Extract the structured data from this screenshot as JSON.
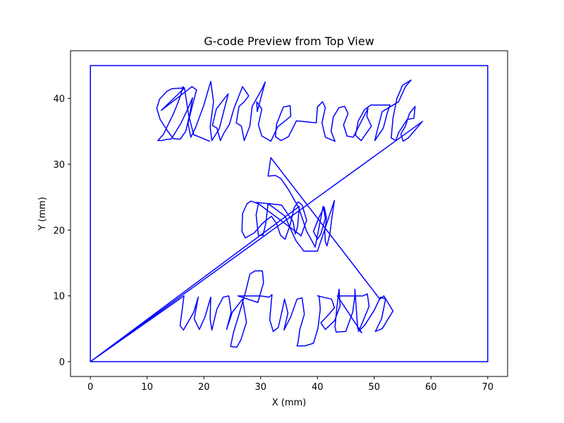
{
  "chart_data": {
    "type": "line",
    "title": "G-code Preview from Top View",
    "xlabel": "X (mm)",
    "ylabel": "Y (mm)",
    "xlim": [
      -3.5,
      73.5
    ],
    "ylim": [
      -2.25,
      47.25
    ],
    "xticks": [
      0,
      10,
      20,
      30,
      40,
      50,
      60,
      70
    ],
    "yticks": [
      0,
      10,
      20,
      30,
      40
    ],
    "grid": false,
    "legend": "none",
    "line_color": "#0000ff",
    "series": [
      {
        "values": [
          [
            0,
            0
          ],
          [
            0,
            45
          ],
          [
            70,
            45
          ],
          [
            70,
            0
          ],
          [
            0,
            0
          ],
          [
            16.5,
            10
          ],
          [
            15.8,
            5.5
          ],
          [
            16.4,
            4.8
          ],
          [
            18.2,
            7.5
          ],
          [
            19,
            9.8
          ],
          [
            18.3,
            6.5
          ],
          [
            19.2,
            4.9
          ],
          [
            20.2,
            6.8
          ],
          [
            21.2,
            9.8
          ],
          [
            21.1,
            6.5
          ],
          [
            21.4,
            4.8
          ],
          [
            22.3,
            8
          ],
          [
            23.4,
            9.8
          ],
          [
            24.4,
            10
          ],
          [
            24.8,
            7.5
          ],
          [
            24,
            4.9
          ],
          [
            25,
            7.5
          ],
          [
            26.8,
            9.5
          ],
          [
            27.5,
            6
          ],
          [
            26.5,
            3.3
          ],
          [
            25.8,
            2.2
          ],
          [
            24.7,
            2.3
          ],
          [
            25.2,
            4.4
          ],
          [
            26.3,
            7.5
          ],
          [
            27.4,
            10.8
          ],
          [
            28.1,
            13.3
          ],
          [
            29,
            13.8
          ],
          [
            30.3,
            13.8
          ],
          [
            30.5,
            12
          ],
          [
            29.5,
            9
          ],
          [
            26,
            10
          ],
          [
            30,
            10
          ],
          [
            31.5,
            9.8
          ],
          [
            32,
            10.2
          ],
          [
            31.6,
            6.4
          ],
          [
            32.2,
            4.6
          ],
          [
            33.1,
            5.2
          ],
          [
            33.8,
            7.8
          ],
          [
            34.2,
            9.5
          ],
          [
            34.8,
            7.4
          ],
          [
            34.1,
            4.8
          ],
          [
            35.3,
            6.8
          ],
          [
            36.4,
            9.5
          ],
          [
            37.3,
            9.7
          ],
          [
            37.7,
            7.2
          ],
          [
            36.9,
            4.9
          ],
          [
            36.6,
            3
          ],
          [
            36.4,
            2.4
          ],
          [
            37.8,
            2.4
          ],
          [
            39.3,
            2.8
          ],
          [
            40.1,
            5.1
          ],
          [
            40.5,
            8
          ],
          [
            40.3,
            10
          ],
          [
            40,
            10
          ],
          [
            42.5,
            9.5
          ],
          [
            43,
            8.2
          ],
          [
            41.8,
            7
          ],
          [
            40.6,
            5.9
          ],
          [
            41.4,
            4.9
          ],
          [
            43,
            6.2
          ],
          [
            44,
            8.5
          ],
          [
            43.8,
            11
          ],
          [
            43.4,
            8
          ],
          [
            43.1,
            5.3
          ],
          [
            43.3,
            4.5
          ],
          [
            45,
            4.6
          ],
          [
            46.2,
            7.5
          ],
          [
            46.6,
            10
          ],
          [
            46.6,
            11
          ],
          [
            47.1,
            5
          ],
          [
            47.8,
            4.4
          ],
          [
            43.5,
            10
          ],
          [
            48,
            10
          ],
          [
            48.8,
            10.3
          ],
          [
            49.1,
            8.4
          ],
          [
            47.7,
            5.5
          ],
          [
            47.2,
            4.6
          ],
          [
            48.3,
            5.5
          ],
          [
            50,
            7.8
          ],
          [
            51.1,
            9.8
          ],
          [
            52,
            9.5
          ],
          [
            51.3,
            6.5
          ],
          [
            50.2,
            4.6
          ],
          [
            51.4,
            5
          ],
          [
            53.3,
            7.7
          ],
          [
            51.7,
            10
          ],
          [
            51,
            9.5
          ],
          [
            31.8,
            31
          ],
          [
            31.3,
            28.2
          ],
          [
            32.6,
            28.3
          ],
          [
            33.6,
            27.8
          ],
          [
            35,
            26
          ],
          [
            36.7,
            23.4
          ],
          [
            38.1,
            19.8
          ],
          [
            39.2,
            18.1
          ],
          [
            39.6,
            17.4
          ],
          [
            41,
            23.6
          ],
          [
            41.4,
            21.8
          ],
          [
            40.6,
            19.4
          ],
          [
            40,
            18.6
          ],
          [
            39.3,
            19.8
          ],
          [
            40.3,
            22
          ],
          [
            41.2,
            23.5
          ],
          [
            41.6,
            21.8
          ],
          [
            41.3,
            19.8
          ],
          [
            41.4,
            18.2
          ],
          [
            41.7,
            17.6
          ],
          [
            42.2,
            19.5
          ],
          [
            42.5,
            21.6
          ],
          [
            43,
            24.5
          ],
          [
            40,
            16.8
          ],
          [
            37.6,
            16.8
          ],
          [
            36.2,
            18.4
          ],
          [
            35.1,
            20.5
          ],
          [
            34.3,
            22.1
          ],
          [
            32.3,
            23.4
          ],
          [
            31.3,
            24
          ],
          [
            30.9,
            21
          ],
          [
            30.4,
            19.2
          ],
          [
            29.6,
            19.2
          ],
          [
            29.2,
            22.3
          ],
          [
            29.6,
            24
          ],
          [
            28.3,
            24.4
          ],
          [
            27.6,
            24
          ],
          [
            26.8,
            22.5
          ],
          [
            26.7,
            19.8
          ],
          [
            27.3,
            18.8
          ],
          [
            28.9,
            19.6
          ],
          [
            30.3,
            21
          ],
          [
            31.9,
            22.1
          ],
          [
            32.8,
            21
          ],
          [
            33.5,
            19.2
          ],
          [
            34.3,
            18.6
          ],
          [
            35.2,
            20.8
          ],
          [
            35.9,
            23.4
          ],
          [
            36.6,
            24.3
          ],
          [
            37.3,
            23.8
          ],
          [
            38.1,
            21.5
          ],
          [
            37.1,
            19.1
          ],
          [
            36.9,
            19.3
          ],
          [
            29.3,
            24.2
          ],
          [
            33.7,
            23.8
          ],
          [
            35.7,
            21.3
          ],
          [
            36.1,
            19.4
          ],
          [
            36.5,
            20.5
          ],
          [
            36.8,
            23.6
          ],
          [
            0,
            0
          ],
          [
            58.5,
            36.5
          ],
          [
            56,
            34
          ],
          [
            55.1,
            33.5
          ],
          [
            54.7,
            34.6
          ],
          [
            55.5,
            35.8
          ],
          [
            56.2,
            37.7
          ],
          [
            57.2,
            38.8
          ],
          [
            57,
            37
          ],
          [
            55.8,
            36.8
          ],
          [
            54.3,
            34.8
          ],
          [
            53.8,
            33.6
          ],
          [
            53,
            34
          ],
          [
            53.3,
            37
          ],
          [
            54,
            40
          ],
          [
            55,
            42
          ],
          [
            56.5,
            42.8
          ],
          [
            55.5,
            41.8
          ],
          [
            54.3,
            39.5
          ],
          [
            51.4,
            38
          ],
          [
            50.5,
            35
          ],
          [
            50.1,
            33.6
          ],
          [
            51.6,
            35.5
          ],
          [
            52.3,
            37.8
          ],
          [
            52.8,
            39
          ],
          [
            49.4,
            39
          ],
          [
            48.3,
            38.3
          ],
          [
            47.2,
            36.6
          ],
          [
            46.7,
            34.4
          ],
          [
            47.7,
            33.6
          ],
          [
            49.5,
            35.8
          ],
          [
            48.7,
            37.3
          ],
          [
            48.9,
            38.5
          ],
          [
            47.2,
            35.6
          ],
          [
            46.3,
            34.1
          ],
          [
            45.2,
            34.3
          ],
          [
            44.6,
            36
          ],
          [
            45.4,
            37.7
          ],
          [
            44.8,
            38.8
          ],
          [
            43.8,
            38.6
          ],
          [
            42.8,
            37.2
          ],
          [
            42.4,
            35
          ],
          [
            43.1,
            33.5
          ],
          [
            41.4,
            34.1
          ],
          [
            40.8,
            36.3
          ],
          [
            41.4,
            38.6
          ],
          [
            40.9,
            39.5
          ],
          [
            40,
            38.7
          ],
          [
            39.8,
            36.3
          ],
          [
            36.3,
            36.6
          ],
          [
            34.9,
            34.2
          ],
          [
            33.6,
            33.6
          ],
          [
            32.6,
            34.2
          ],
          [
            32.8,
            36.1
          ],
          [
            34,
            38.7
          ],
          [
            35.2,
            38.9
          ],
          [
            35.3,
            37.3
          ],
          [
            33,
            35.7
          ],
          [
            31.8,
            33.5
          ],
          [
            30.2,
            34.3
          ],
          [
            29.6,
            36
          ],
          [
            30.2,
            38.4
          ],
          [
            29.3,
            39.5
          ],
          [
            29.4,
            38
          ],
          [
            30.8,
            42.5
          ],
          [
            30.2,
            41.4
          ],
          [
            28.5,
            38.8
          ],
          [
            28.1,
            35.8
          ],
          [
            27.1,
            33.6
          ],
          [
            26.6,
            35.8
          ],
          [
            25.7,
            36.3
          ],
          [
            26.2,
            38.8
          ],
          [
            27.1,
            39.5
          ],
          [
            27.9,
            40.4
          ],
          [
            26.8,
            41.8
          ],
          [
            25.3,
            38.5
          ],
          [
            24.5,
            36.1
          ],
          [
            23.5,
            34.7
          ],
          [
            22.9,
            33.6
          ],
          [
            22.3,
            35.5
          ],
          [
            21.5,
            35.9
          ],
          [
            22.2,
            38.4
          ],
          [
            23.8,
            40.2
          ],
          [
            24.3,
            40.7
          ],
          [
            22.7,
            35.4
          ],
          [
            21.4,
            33.6
          ],
          [
            21.1,
            35.7
          ],
          [
            21.7,
            39.5
          ],
          [
            21.2,
            42.6
          ],
          [
            20,
            39
          ],
          [
            18.5,
            35.5
          ],
          [
            17.7,
            34.1
          ],
          [
            17.2,
            36.2
          ],
          [
            18,
            39
          ],
          [
            18.7,
            41.3
          ],
          [
            17.9,
            41.8
          ],
          [
            12.5,
            38.2
          ],
          [
            16.6,
            41.6
          ],
          [
            14.4,
            41.5
          ],
          [
            13.5,
            41.1
          ],
          [
            12.2,
            39.9
          ],
          [
            11.7,
            38.5
          ],
          [
            12.3,
            36.8
          ],
          [
            13.5,
            35.2
          ],
          [
            14.6,
            33.9
          ],
          [
            15.8,
            33.8
          ],
          [
            16.8,
            35
          ],
          [
            17.6,
            38
          ],
          [
            18,
            40.1
          ],
          [
            17.2,
            38.5
          ],
          [
            16,
            36.3
          ],
          [
            14.8,
            34.6
          ],
          [
            14.2,
            33.8
          ],
          [
            13.5,
            33.8
          ],
          [
            12.6,
            33.6
          ],
          [
            11.9,
            33.6
          ],
          [
            12.9,
            34.6
          ],
          [
            13.8,
            36.2
          ],
          [
            14.6,
            37.6
          ],
          [
            15.4,
            39.3
          ],
          [
            16,
            40.7
          ],
          [
            16.3,
            41.8
          ],
          [
            16.6,
            41.5
          ],
          [
            17.3,
            37.5
          ],
          [
            18.2,
            34.5
          ],
          [
            21,
            33.5
          ]
        ]
      }
    ]
  }
}
